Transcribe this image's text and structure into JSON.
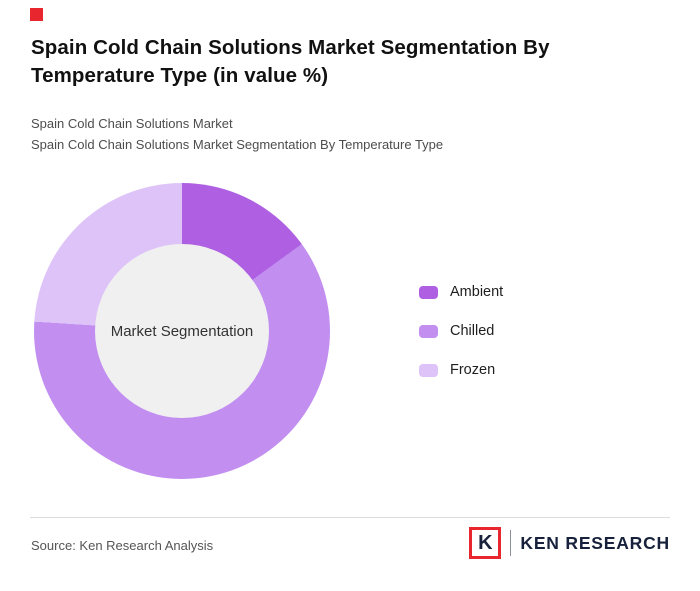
{
  "page": {
    "title": "Spain Cold Chain Solutions Market Segmentation By Temperature Type (in value %)",
    "subtitle_line1": "Spain Cold Chain Solutions Market",
    "subtitle_line2": "Spain Cold Chain Solutions Market Segmentation By Temperature Type",
    "source": "Source: Ken Research Analysis"
  },
  "brand": {
    "accent_color": "#e8262d",
    "logo_letter": "K",
    "logo_text": "KEN RESEARCH"
  },
  "chart_data": {
    "type": "pie",
    "donut": true,
    "title": "Spain Cold Chain Solutions Market Segmentation By Temperature Type (in value %)",
    "center_label": "Market Segmentation",
    "categories": [
      "Ambient",
      "Chilled",
      "Frozen"
    ],
    "values": [
      15,
      61,
      24
    ],
    "colors": [
      "#ae5fe2",
      "#c28ff0",
      "#ddc3f7"
    ],
    "start_angle_deg": 0,
    "direction": "clockwise",
    "legend_position": "right",
    "hole_color": "#f0f0f0"
  }
}
